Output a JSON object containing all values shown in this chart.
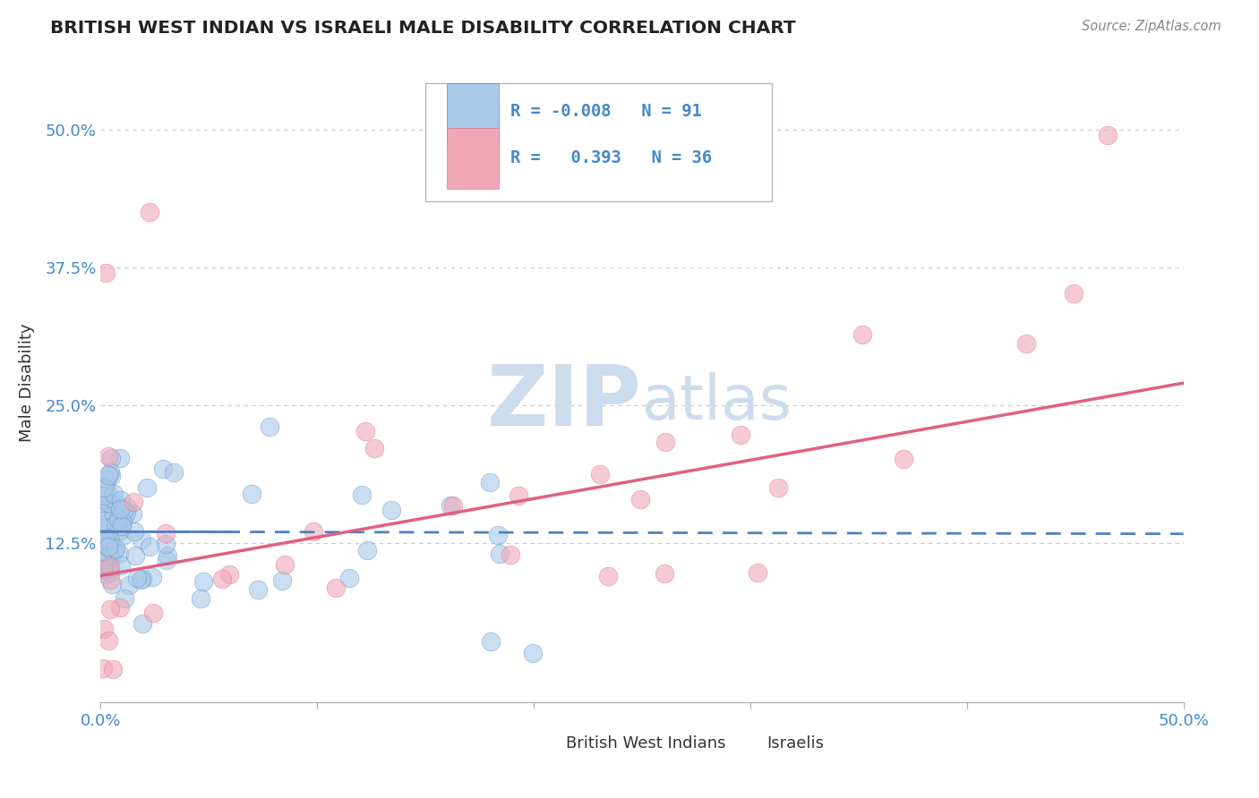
{
  "title": "BRITISH WEST INDIAN VS ISRAELI MALE DISABILITY CORRELATION CHART",
  "source": "Source: ZipAtlas.com",
  "ylabel": "Male Disability",
  "x_min": 0.0,
  "x_max": 0.5,
  "y_min": -0.02,
  "y_max": 0.56,
  "y_ticks": [
    0.0,
    0.125,
    0.25,
    0.375,
    0.5
  ],
  "y_tick_labels": [
    "",
    "12.5%",
    "25.0%",
    "37.5%",
    "50.0%"
  ],
  "x_tick_labels": [
    "0.0%",
    "",
    "",
    "",
    "",
    "50.0%"
  ],
  "legend_label1": "British West Indians",
  "legend_label2": "Israelis",
  "blue_R": "-0.008",
  "blue_N": "91",
  "pink_R": "0.393",
  "pink_N": "36",
  "blue_color": "#a8c8e8",
  "pink_color": "#f0a8b8",
  "blue_edge_color": "#6090c8",
  "pink_edge_color": "#e07090",
  "blue_line_color": "#5080c0",
  "pink_line_color": "#e06080",
  "watermark_color": "#ccdcec",
  "background_color": "#ffffff",
  "grid_color": "#c8c8c8",
  "title_color": "#222222",
  "tick_label_color": "#4488cc",
  "ylabel_color": "#333333",
  "legend_box_color": "#f0f4f8",
  "legend_border_color": "#b0b8c8",
  "source_color": "#888888",
  "blue_trend_start_y": 0.135,
  "blue_trend_end_y": 0.133,
  "pink_trend_start_y": 0.095,
  "pink_trend_end_y": 0.27
}
